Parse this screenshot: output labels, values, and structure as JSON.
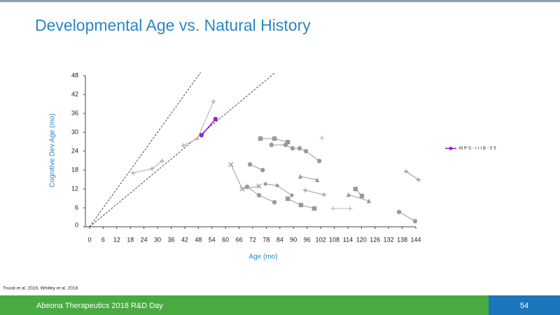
{
  "slide": {
    "title": "Developmental Age vs. Natural History",
    "footnote": "Truxal et al. 2016; Whitley et al. 2018",
    "footer": "Abeona Therapeutics 2018 R&D Day",
    "page": "54"
  },
  "chart_data": {
    "type": "line",
    "xlabel": "Age (mo)",
    "ylabel": "Cognitive Dev Age (mo)",
    "xlim": [
      0,
      144
    ],
    "ylim": [
      0,
      48
    ],
    "xticks": [
      0,
      6,
      12,
      18,
      24,
      30,
      36,
      42,
      48,
      54,
      60,
      66,
      72,
      78,
      84,
      90,
      96,
      102,
      108,
      114,
      120,
      126,
      132,
      138,
      144
    ],
    "yticks": [
      0,
      6,
      12,
      18,
      24,
      30,
      36,
      42,
      48
    ],
    "reference_lines": [
      {
        "x": [
          0,
          49
        ],
        "values": [
          0,
          49
        ]
      },
      {
        "x": [
          0,
          82
        ],
        "values": [
          0,
          49
        ]
      }
    ],
    "legend": "right",
    "series": [
      {
        "name": "MPS-IIIB-05",
        "color": "#9b1fd1",
        "marker": "circle",
        "x": [
          49.4,
          55.6
        ],
        "values": [
          29.1,
          34.2
        ]
      },
      {
        "color": "#aaaaaa",
        "marker": "plus",
        "x": [
          19.2,
          27.5,
          32.1
        ],
        "values": [
          17.1,
          18.4,
          20.9
        ]
      },
      {
        "color": "#aaaaaa",
        "marker": "plus",
        "x": [
          41.4,
          47.6,
          54.7
        ],
        "values": [
          25.8,
          28,
          39.8
        ]
      },
      {
        "color": "#999999",
        "marker": "square",
        "x": [
          75.4,
          81.6,
          87.5
        ],
        "values": [
          28,
          28,
          26.9
        ]
      },
      {
        "color": "#999999",
        "marker": "circle",
        "x": [
          80.3,
          86.5,
          89.6,
          92.7,
          95.5,
          101.4
        ],
        "values": [
          26,
          26,
          24.9,
          24.9,
          24,
          20.9
        ]
      },
      {
        "color": "#999999",
        "marker": "circle",
        "x": [
          70.8,
          76.4
        ],
        "values": [
          19.8,
          18
        ]
      },
      {
        "color": "#999999",
        "marker": "x",
        "x": [
          62.4,
          67.4,
          74.8
        ],
        "values": [
          19.8,
          12,
          12.9
        ]
      },
      {
        "color": "#999999",
        "marker": "circle",
        "x": [
          69.5,
          74.8,
          81.6
        ],
        "values": [
          12.7,
          10,
          7.8
        ]
      },
      {
        "color": "#999999",
        "marker": "triangle",
        "x": [
          93,
          100.5
        ],
        "values": [
          16,
          14.9
        ]
      },
      {
        "color": "#999999",
        "marker": "diamond",
        "x": [
          77.6,
          82.8,
          89.3
        ],
        "values": [
          13.6,
          13.1,
          10
        ]
      },
      {
        "color": "#999999",
        "marker": "square",
        "x": [
          87.5,
          93.3,
          99.2
        ],
        "values": [
          8.9,
          6.9,
          5.8
        ]
      },
      {
        "color": "#999999",
        "marker": "plus",
        "x": [
          95.2,
          103.5
        ],
        "values": [
          11.6,
          10.2
        ]
      },
      {
        "color": "#999999",
        "marker": "triangle",
        "x": [
          114.3,
          123.3
        ],
        "values": [
          10.2,
          8.2
        ]
      },
      {
        "color": "#999999",
        "marker": "square",
        "x": [
          117.4,
          120.2
        ],
        "values": [
          12,
          9.8
        ]
      },
      {
        "color": "#999999",
        "marker": "plus",
        "x": [
          139.7,
          145.2
        ],
        "values": [
          17.6,
          14.9
        ]
      },
      {
        "color": "#999999",
        "marker": "circle",
        "x": [
          136.6,
          143.7
        ],
        "values": [
          4.7,
          1.8
        ]
      },
      {
        "color": "#bbbbbb",
        "marker": "plus",
        "x": [
          102.6
        ],
        "values": [
          28.2
        ]
      },
      {
        "color": "#bbbbbb",
        "marker": "plus",
        "x": [
          107.5,
          115
        ],
        "values": [
          5.8,
          5.8
        ]
      }
    ]
  }
}
